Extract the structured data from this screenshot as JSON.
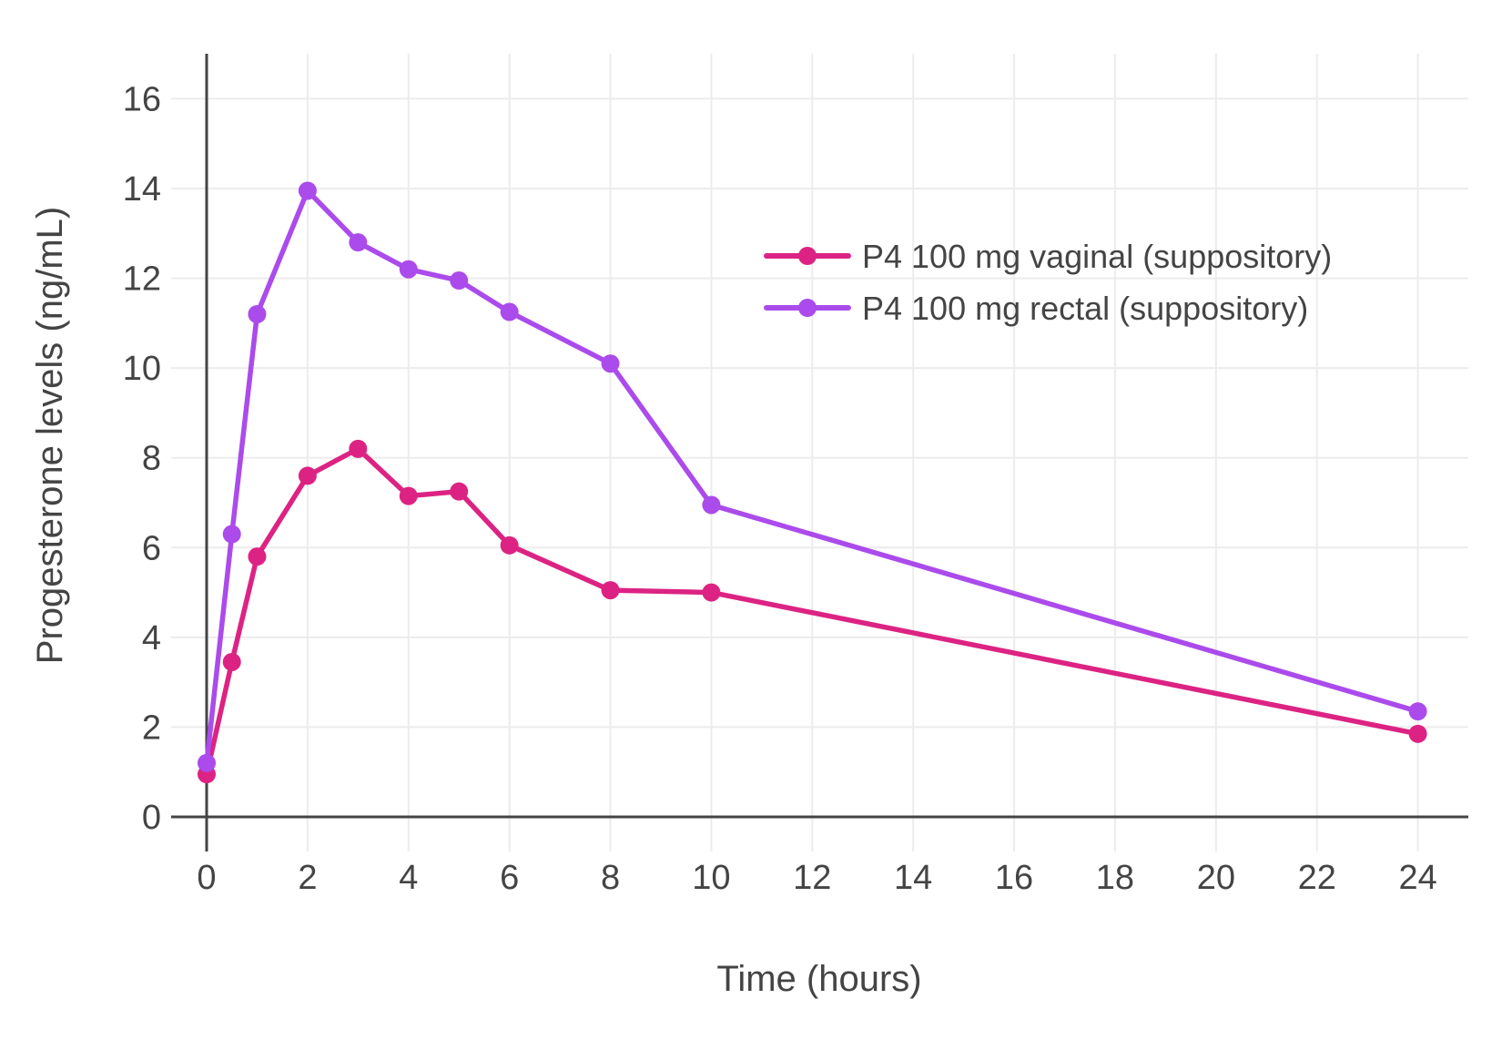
{
  "chart_data": {
    "type": "line",
    "title": "",
    "xlabel": "Time (hours)",
    "ylabel": "Progesterone levels (ng/mL)",
    "x_ticks": [
      0,
      2,
      4,
      6,
      8,
      10,
      12,
      14,
      16,
      18,
      20,
      22,
      24
    ],
    "y_ticks": [
      0,
      2,
      4,
      6,
      8,
      10,
      12,
      14,
      16
    ],
    "xlim": [
      0,
      25
    ],
    "ylim": [
      0,
      17
    ],
    "grid": true,
    "legend_position": "inside upper right",
    "x": [
      0,
      0.5,
      1,
      2,
      3,
      4,
      5,
      6,
      8,
      10,
      24
    ],
    "series": [
      {
        "name": "P4 100 mg vaginal (suppository)",
        "color": "#DC2383",
        "values": [
          0.95,
          3.45,
          5.8,
          7.6,
          8.2,
          7.15,
          7.25,
          6.05,
          5.05,
          5.0,
          1.85
        ]
      },
      {
        "name": "P4 100 mg rectal (suppository)",
        "color": "#AB4BEB",
        "values": [
          1.2,
          6.3,
          11.2,
          13.95,
          12.8,
          12.2,
          11.95,
          11.25,
          10.1,
          6.95,
          2.35
        ]
      }
    ],
    "styles": {
      "text_color": "#444444",
      "axis_color": "#444444",
      "grid_color": "#ECECEC",
      "background": "#FFFFFF"
    }
  }
}
